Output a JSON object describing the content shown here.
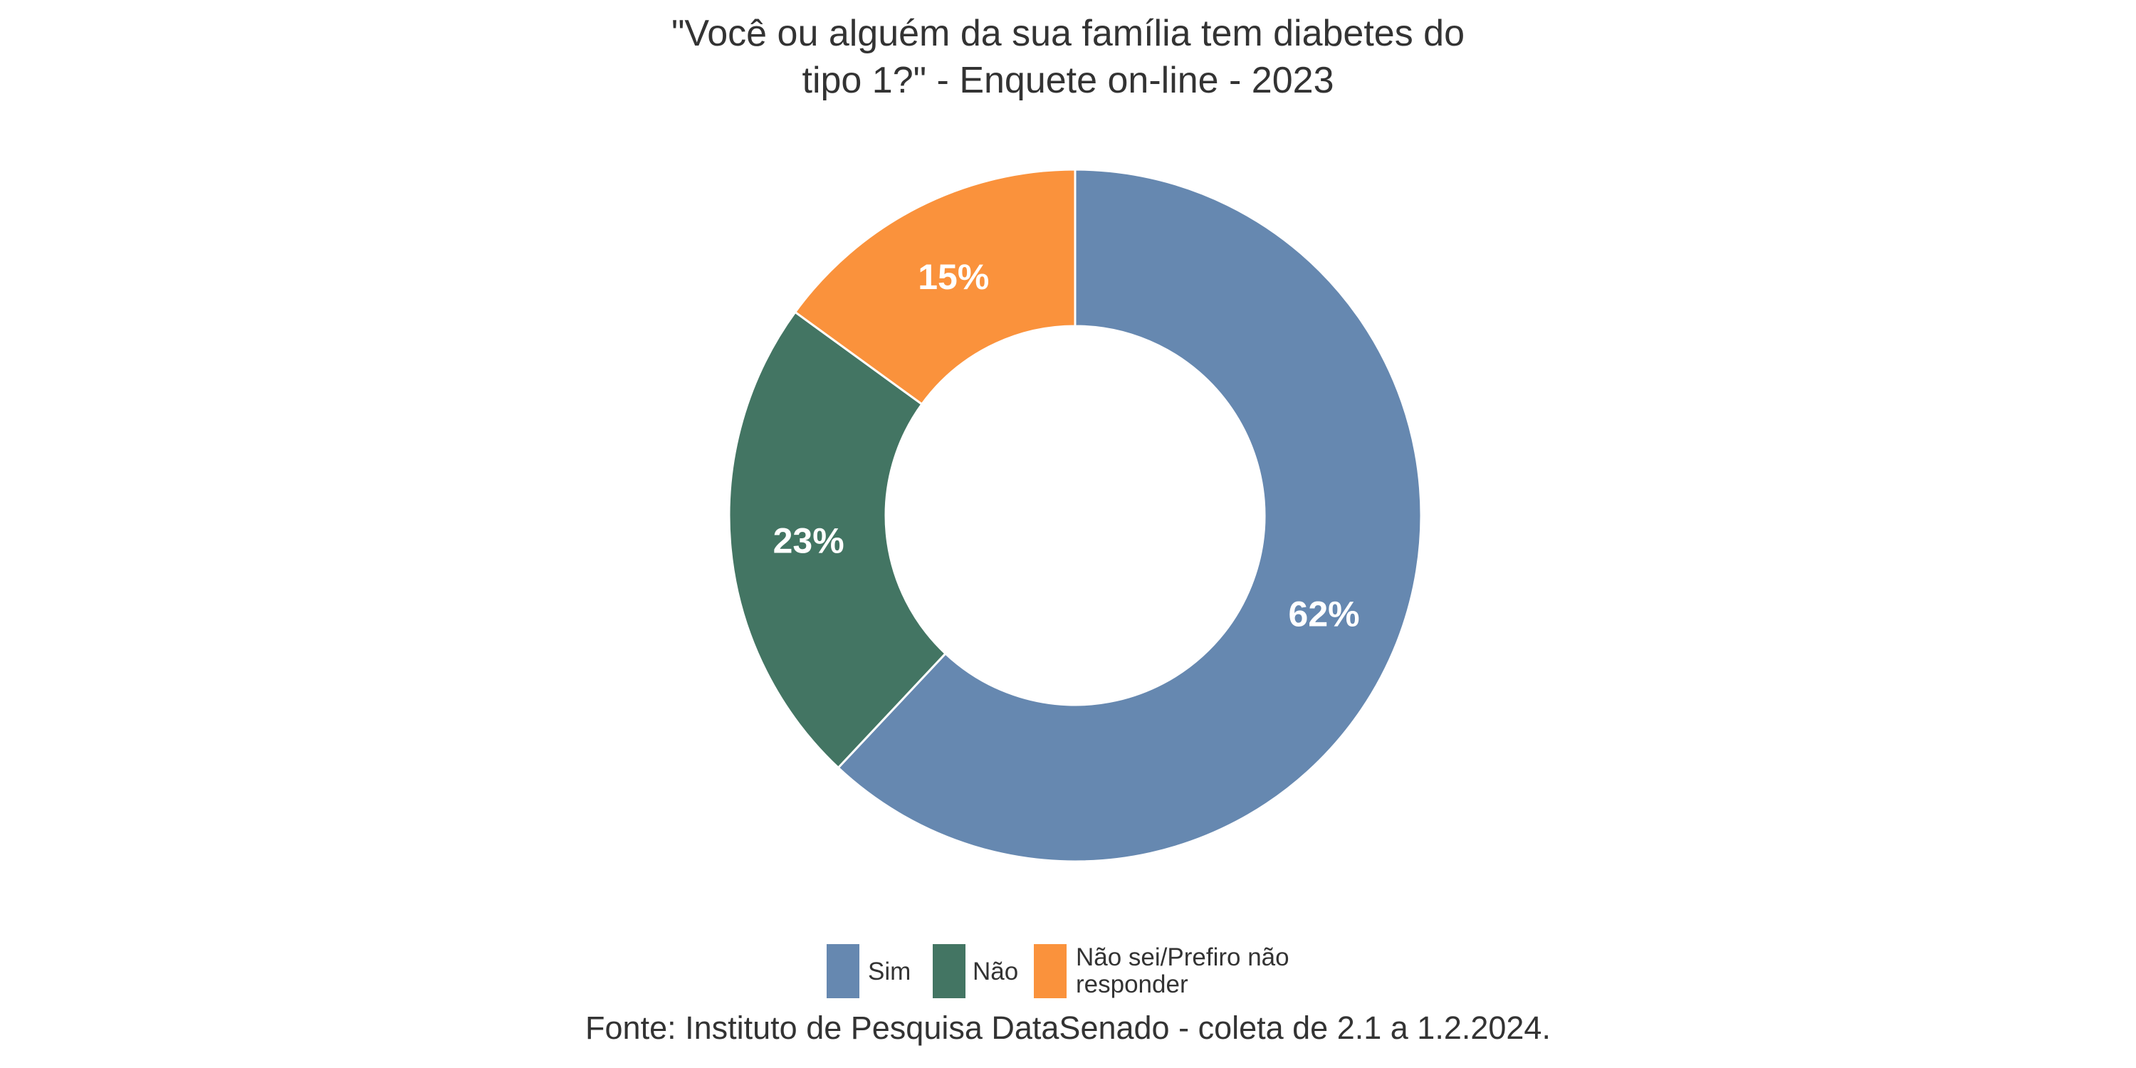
{
  "chart_data": {
    "type": "pie",
    "variant": "donut",
    "title_lines": [
      "\"Você ou alguém da sua família tem diabetes do",
      "tipo 1?\" - Enquete on-line - 2023"
    ],
    "categories": [
      "Sim",
      "Não",
      "Não sei/Prefiro não responder"
    ],
    "values": [
      62,
      23,
      15
    ],
    "data_labels": [
      "62%",
      "23%",
      "15%"
    ],
    "colors": [
      "#6688b0",
      "#437563",
      "#fa923c"
    ],
    "legend": {
      "placement": "bottom",
      "entries": [
        "Sim",
        "Não",
        "Não sei/Prefiro não responder"
      ],
      "wrapped_last": [
        "Não sei/Prefiro não",
        "responder"
      ]
    },
    "caption": "Fonte: Instituto de Pesquisa DataSenado - coleta de 2.1 a 1.2.2024."
  }
}
